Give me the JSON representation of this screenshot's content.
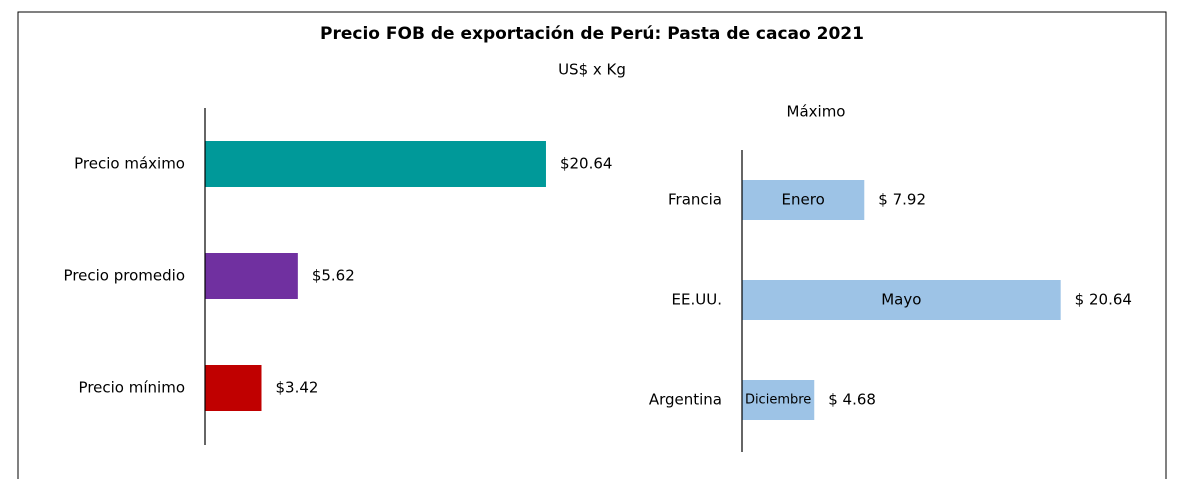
{
  "chart_data": [
    {
      "type": "bar",
      "orientation": "horizontal",
      "title": "Precio FOB de exportación de Perú: Pasta de cacao 2021",
      "subtitle": "US$ x Kg",
      "categories": [
        "Precio máximo",
        "Precio promedio",
        "Precio mínimo"
      ],
      "values": [
        20.64,
        5.62,
        3.42
      ],
      "value_labels": [
        "$20.64",
        "$5.62",
        "$3.42"
      ],
      "colors": [
        "#009999",
        "#7030a0",
        "#c00000"
      ],
      "xlim": [
        0,
        25
      ]
    },
    {
      "type": "bar",
      "orientation": "horizontal",
      "title": "Máximo",
      "categories": [
        "Francia",
        "EE.UU.",
        "Argentina"
      ],
      "values": [
        7.92,
        20.64,
        4.68
      ],
      "value_labels": [
        "$ 7.92",
        "$ 20.64",
        "$ 4.68"
      ],
      "annotations": [
        "Enero",
        "Mayo",
        "Diciembre"
      ],
      "color": "#9dc3e6",
      "xlim": [
        0,
        25
      ]
    }
  ]
}
